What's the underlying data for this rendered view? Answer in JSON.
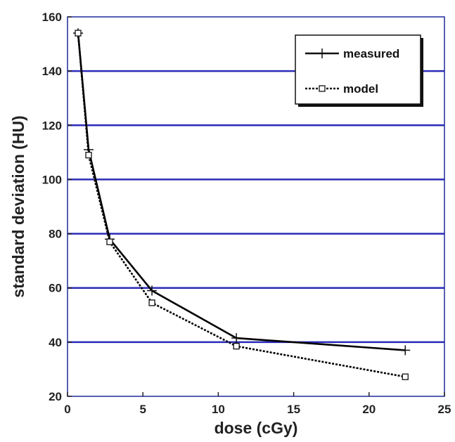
{
  "chart_data": {
    "type": "line",
    "title": "",
    "xlabel": "dose (cGy)",
    "ylabel": "standard deviation (HU)",
    "xlim": [
      0,
      25
    ],
    "ylim": [
      20,
      160
    ],
    "x_ticks": [
      "0",
      "5",
      "10",
      "15",
      "20",
      "25"
    ],
    "y_ticks": [
      "20",
      "40",
      "60",
      "80",
      "100",
      "120",
      "140",
      "160"
    ],
    "grid": "horizontal",
    "legend_position": "top-right",
    "series": [
      {
        "name": "measured",
        "marker": "plus",
        "line_style": "solid",
        "color": "#000000",
        "points": [
          [
            0.7,
            154
          ],
          [
            1.4,
            111
          ],
          [
            2.8,
            78
          ],
          [
            5.6,
            59
          ],
          [
            11.2,
            41.5
          ],
          [
            22.4,
            37
          ]
        ]
      },
      {
        "name": "model",
        "marker": "square",
        "line_style": "dotted",
        "color": "#000000",
        "points": [
          [
            0.7,
            154
          ],
          [
            1.4,
            109
          ],
          [
            2.8,
            77
          ],
          [
            5.6,
            54.5
          ],
          [
            11.2,
            38.5
          ],
          [
            22.4,
            27.2
          ]
        ]
      }
    ],
    "grid_color": "#2b2bb8"
  }
}
